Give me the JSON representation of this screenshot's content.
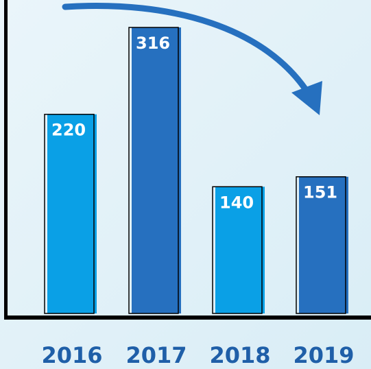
{
  "chart_data": {
    "type": "bar",
    "categories": [
      "2016",
      "2017",
      "2018",
      "2019"
    ],
    "values": [
      220,
      316,
      140,
      151
    ],
    "colors": [
      "#0aa0e6",
      "#2670bf",
      "#0aa0e6",
      "#2670bf"
    ]
  }
}
